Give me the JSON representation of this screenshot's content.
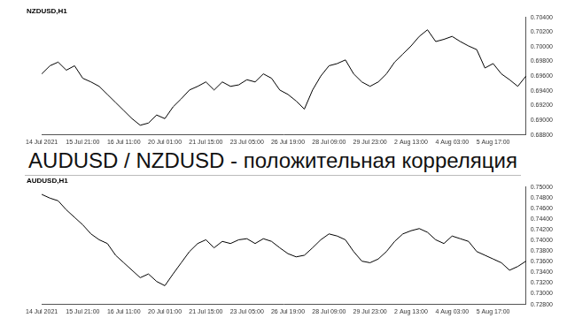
{
  "title": "AUDUSD / NZDUSD - положительная корреляция",
  "chart_data": [
    {
      "type": "line",
      "title": "NZDUSD,H1",
      "color": "#000000",
      "grid": false,
      "legend": "none",
      "categories": [
        "14 Jul 2021",
        null,
        null,
        null,
        null,
        "15 Jul 21:00",
        null,
        null,
        null,
        null,
        "16 Jul 11:00",
        null,
        null,
        null,
        null,
        "20 Jul 01:00",
        null,
        null,
        null,
        null,
        "21 Jul 15:00",
        null,
        null,
        null,
        null,
        "23 Jul 05:00",
        null,
        null,
        null,
        null,
        "26 Jul 19:00",
        null,
        null,
        null,
        null,
        "28 Jul 09:00",
        null,
        null,
        null,
        null,
        "29 Jul 23:00",
        null,
        null,
        null,
        null,
        "2 Aug 13:00",
        null,
        null,
        null,
        null,
        "4 Aug 03:00",
        null,
        null,
        null,
        null,
        "5 Aug 17:00",
        null,
        null,
        null,
        null
      ],
      "values": [
        0.6963,
        0.6974,
        0.6979,
        0.6968,
        0.6974,
        0.6957,
        0.6952,
        0.6946,
        0.6935,
        0.6924,
        0.6913,
        0.6902,
        0.6893,
        0.6896,
        0.6907,
        0.6902,
        0.6918,
        0.6929,
        0.6941,
        0.6946,
        0.6952,
        0.6941,
        0.6952,
        0.6946,
        0.6948,
        0.6955,
        0.6952,
        0.6963,
        0.6957,
        0.6941,
        0.6935,
        0.6926,
        0.6915,
        0.6941,
        0.696,
        0.6974,
        0.6977,
        0.6982,
        0.6963,
        0.6952,
        0.6946,
        0.6952,
        0.6963,
        0.6979,
        0.699,
        0.7001,
        0.7014,
        0.7023,
        0.7007,
        0.701,
        0.7014,
        0.7007,
        0.7001,
        0.6996,
        0.6971,
        0.6977,
        0.6963,
        0.6955,
        0.6946,
        0.696
      ],
      "ylim": [
        0.688,
        0.704
      ],
      "yticks": [
        {
          "value": 0.688,
          "label": "0.68800"
        },
        {
          "value": 0.69,
          "label": "0.69000"
        },
        {
          "value": 0.692,
          "label": "0.69200"
        },
        {
          "value": 0.694,
          "label": "0.69400"
        },
        {
          "value": 0.696,
          "label": "0.69600"
        },
        {
          "value": 0.698,
          "label": "0.69800"
        },
        {
          "value": 0.7,
          "label": "0.70000"
        },
        {
          "value": 0.702,
          "label": "0.70200"
        },
        {
          "value": 0.704,
          "label": "0.70400"
        }
      ]
    },
    {
      "type": "line",
      "title": "AUDUSD,H1",
      "color": "#000000",
      "grid": false,
      "legend": "none",
      "categories": [
        "14 Jul 2021",
        null,
        null,
        null,
        null,
        "15 Jul 21:00",
        null,
        null,
        null,
        null,
        "16 Jul 11:00",
        null,
        null,
        null,
        null,
        "20 Jul 01:00",
        null,
        null,
        null,
        null,
        "21 Jul 15:00",
        null,
        null,
        null,
        null,
        "23 Jul 05:00",
        null,
        null,
        null,
        null,
        "26 Jul 19:00",
        null,
        null,
        null,
        null,
        "28 Jul 09:00",
        null,
        null,
        null,
        null,
        "29 Jul 23:00",
        null,
        null,
        null,
        null,
        "2 Aug 13:00",
        null,
        null,
        null,
        null,
        "4 Aug 03:00",
        null,
        null,
        null,
        null,
        "5 Aug 17:00",
        null,
        null,
        null,
        null
      ],
      "values": [
        0.7486,
        0.7479,
        0.7474,
        0.7457,
        0.7443,
        0.7429,
        0.7412,
        0.7401,
        0.7394,
        0.7372,
        0.7358,
        0.7344,
        0.733,
        0.7337,
        0.7323,
        0.7315,
        0.7337,
        0.7358,
        0.7379,
        0.7394,
        0.7401,
        0.7386,
        0.7398,
        0.7394,
        0.7401,
        0.7403,
        0.7394,
        0.7403,
        0.7398,
        0.7386,
        0.7375,
        0.7369,
        0.7372,
        0.7386,
        0.7401,
        0.7412,
        0.7408,
        0.7401,
        0.7379,
        0.7361,
        0.7358,
        0.7365,
        0.7379,
        0.7398,
        0.7412,
        0.7418,
        0.7422,
        0.7415,
        0.7401,
        0.7394,
        0.7408,
        0.7403,
        0.7398,
        0.7379,
        0.7372,
        0.7365,
        0.7358,
        0.7344,
        0.7351,
        0.7361
      ],
      "ylim": [
        0.728,
        0.75
      ],
      "yticks": [
        {
          "value": 0.728,
          "label": "0.72800"
        },
        {
          "value": 0.73,
          "label": "0.73000"
        },
        {
          "value": 0.732,
          "label": "0.73200"
        },
        {
          "value": 0.734,
          "label": "0.73400"
        },
        {
          "value": 0.736,
          "label": "0.73600"
        },
        {
          "value": 0.738,
          "label": "0.73800"
        },
        {
          "value": 0.74,
          "label": "0.74000"
        },
        {
          "value": 0.742,
          "label": "0.74200"
        },
        {
          "value": 0.744,
          "label": "0.74400"
        },
        {
          "value": 0.746,
          "label": "0.74600"
        },
        {
          "value": 0.748,
          "label": "0.74800"
        },
        {
          "value": 0.75,
          "label": "0.75000"
        }
      ]
    }
  ]
}
